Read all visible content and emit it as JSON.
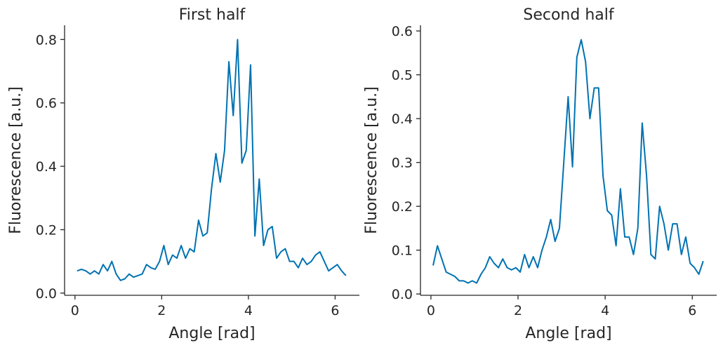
{
  "chart_data": [
    {
      "type": "line",
      "title": "First half",
      "xlabel": "Angle [rad]",
      "ylabel": "Fluorescence [a.u.]",
      "xlim": [
        -0.24,
        6.56
      ],
      "ylim": [
        -0.007,
        0.845
      ],
      "xticks": [
        0,
        2,
        4,
        6
      ],
      "yticks": [
        {
          "value": 0,
          "label": "0.0"
        },
        0.2,
        0.4,
        0.6,
        0.8
      ],
      "x": [
        0.05,
        0.15,
        0.25,
        0.35,
        0.45,
        0.55,
        0.65,
        0.75,
        0.85,
        0.95,
        1.05,
        1.15,
        1.25,
        1.35,
        1.45,
        1.55,
        1.65,
        1.75,
        1.85,
        1.95,
        2.05,
        2.15,
        2.25,
        2.35,
        2.45,
        2.55,
        2.65,
        2.75,
        2.85,
        2.95,
        3.05,
        3.15,
        3.25,
        3.35,
        3.45,
        3.55,
        3.65,
        3.75,
        3.85,
        3.95,
        4.05,
        4.15,
        4.25,
        4.35,
        4.45,
        4.55,
        4.65,
        4.75,
        4.85,
        4.95,
        5.05,
        5.15,
        5.25,
        5.35,
        5.45,
        5.55,
        5.65,
        5.75,
        5.85,
        5.95,
        6.05,
        6.15,
        6.25
      ],
      "series": [
        {
          "name": "First half",
          "color": "#0072b2",
          "values": [
            0.07,
            0.075,
            0.07,
            0.06,
            0.07,
            0.06,
            0.09,
            0.07,
            0.1,
            0.06,
            0.04,
            0.045,
            0.06,
            0.05,
            0.055,
            0.06,
            0.09,
            0.08,
            0.075,
            0.1,
            0.15,
            0.09,
            0.12,
            0.11,
            0.15,
            0.11,
            0.14,
            0.13,
            0.23,
            0.18,
            0.19,
            0.33,
            0.44,
            0.35,
            0.45,
            0.73,
            0.56,
            0.8,
            0.41,
            0.45,
            0.72,
            0.18,
            0.36,
            0.15,
            0.2,
            0.21,
            0.11,
            0.13,
            0.14,
            0.1,
            0.1,
            0.08,
            0.11,
            0.09,
            0.1,
            0.12,
            0.13,
            0.1,
            0.07,
            0.08,
            0.09,
            0.07,
            0.055
          ]
        }
      ]
    },
    {
      "type": "line",
      "title": "Second half",
      "xlabel": "Angle [rad]",
      "ylabel": "Fluorescence [a.u.]",
      "xlim": [
        -0.24,
        6.56
      ],
      "ylim": [
        -0.003,
        0.613
      ],
      "xticks": [
        0,
        2,
        4,
        6
      ],
      "yticks": [
        {
          "value": 0,
          "label": "0.0"
        },
        0.1,
        0.2,
        0.3,
        0.4,
        0.5,
        0.6
      ],
      "x": [
        0.05,
        0.15,
        0.25,
        0.35,
        0.45,
        0.55,
        0.65,
        0.75,
        0.85,
        0.95,
        1.05,
        1.15,
        1.25,
        1.35,
        1.45,
        1.55,
        1.65,
        1.75,
        1.85,
        1.95,
        2.05,
        2.15,
        2.25,
        2.35,
        2.45,
        2.55,
        2.65,
        2.75,
        2.85,
        2.95,
        3.05,
        3.15,
        3.25,
        3.35,
        3.45,
        3.55,
        3.65,
        3.75,
        3.85,
        3.95,
        4.05,
        4.15,
        4.25,
        4.35,
        4.45,
        4.55,
        4.65,
        4.75,
        4.85,
        4.95,
        5.05,
        5.15,
        5.25,
        5.35,
        5.45,
        5.55,
        5.65,
        5.75,
        5.85,
        5.95,
        6.05,
        6.15,
        6.25
      ],
      "series": [
        {
          "name": "Second half",
          "color": "#0072b2",
          "values": [
            0.065,
            0.11,
            0.08,
            0.05,
            0.045,
            0.04,
            0.03,
            0.03,
            0.025,
            0.03,
            0.025,
            0.045,
            0.06,
            0.085,
            0.07,
            0.06,
            0.08,
            0.06,
            0.055,
            0.06,
            0.05,
            0.09,
            0.06,
            0.085,
            0.06,
            0.1,
            0.13,
            0.17,
            0.12,
            0.15,
            0.3,
            0.45,
            0.29,
            0.54,
            0.58,
            0.53,
            0.4,
            0.47,
            0.47,
            0.27,
            0.19,
            0.18,
            0.11,
            0.24,
            0.13,
            0.13,
            0.09,
            0.15,
            0.39,
            0.27,
            0.09,
            0.08,
            0.2,
            0.16,
            0.1,
            0.16,
            0.16,
            0.09,
            0.13,
            0.07,
            0.06,
            0.045,
            0.075
          ]
        }
      ]
    }
  ]
}
